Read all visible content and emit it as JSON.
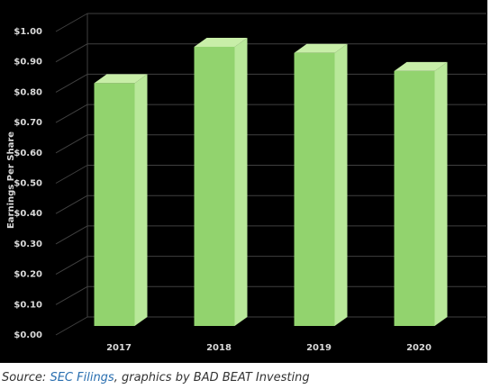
{
  "chart_data": {
    "type": "bar3d",
    "y_label": "Earnings Per Share",
    "categories": [
      "2017",
      "2018",
      "2019",
      "2020"
    ],
    "values": [
      0.8,
      0.92,
      0.9,
      0.84
    ],
    "color": "#92d36e",
    "ylim": [
      0,
      1
    ],
    "yticks": [
      {
        "value": 0,
        "label": "$0.00"
      },
      {
        "value": 0.1,
        "label": "$0.10"
      },
      {
        "value": 0.2,
        "label": "$0.20"
      },
      {
        "value": 0.3,
        "label": "$0.30"
      },
      {
        "value": 0.4,
        "label": "$0.40"
      },
      {
        "value": 0.5,
        "label": "$0.50"
      },
      {
        "value": 0.6,
        "label": "$0.60"
      },
      {
        "value": 0.7,
        "label": "$0.70"
      },
      {
        "value": 0.8,
        "label": "$0.80"
      },
      {
        "value": 0.9,
        "label": "$0.90"
      },
      {
        "value": 1,
        "label": "$1.00"
      }
    ],
    "grid": true
  },
  "caption": {
    "prefix": "Source: ",
    "link": "SEC Filings",
    "suffix": ", graphics by BAD BEAT Investing"
  }
}
